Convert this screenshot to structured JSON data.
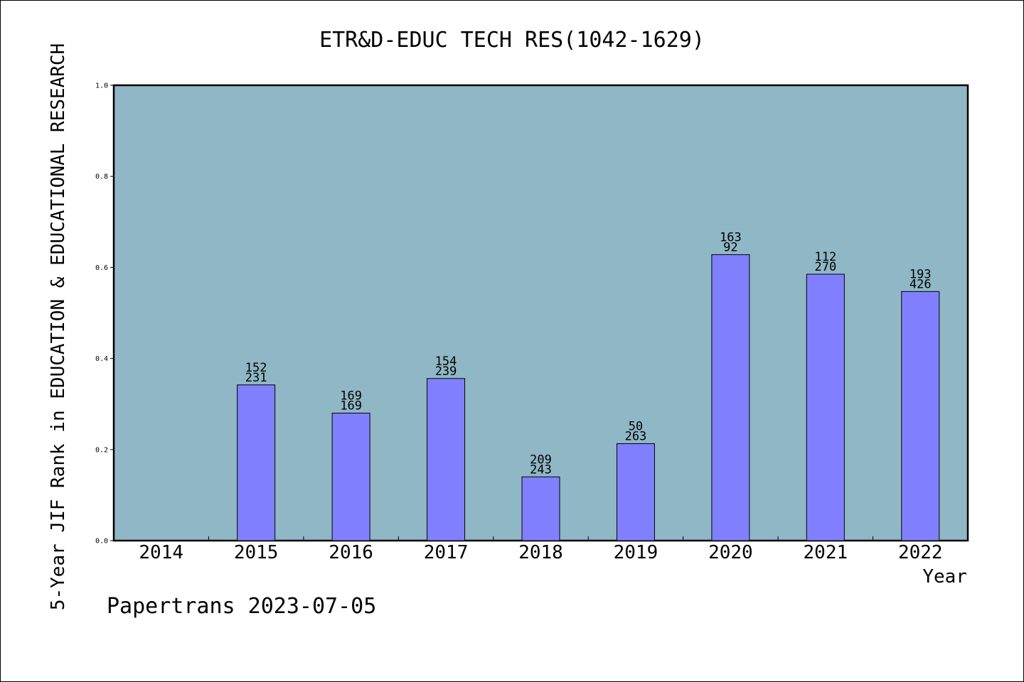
{
  "chart_data": {
    "type": "bar",
    "title": "ETR&D-EDUC TECH RES(1042-1629)",
    "xlabel": "Year",
    "ylabel": "5-Year JIF Rank in EDUCATION & EDUCATIONAL RESEARCH",
    "ylim": [
      0,
      1
    ],
    "yticks": [
      "0.0",
      "0.2",
      "0.4",
      "0.6",
      "0.8",
      "1.0"
    ],
    "ytick_values": [
      0,
      0.2,
      0.4,
      0.6,
      0.8,
      1.0
    ],
    "categories": [
      "2014",
      "2015",
      "2016",
      "2017",
      "2018",
      "2019",
      "2020",
      "2021",
      "2022"
    ],
    "values": [
      null,
      0.342,
      0.28,
      0.356,
      0.14,
      0.213,
      0.628,
      0.585,
      0.547
    ],
    "labels_top": [
      "",
      "152",
      "169",
      "154",
      "209",
      "50",
      "163",
      "112",
      "193"
    ],
    "labels_bottom": [
      "",
      "231",
      "169",
      "239",
      "243",
      "263",
      "92",
      "270",
      "426"
    ],
    "grid": false,
    "colors": {
      "plot_background": "#8fb7c5",
      "bar_fill": "#8080ff",
      "bar_stroke": "#000000",
      "axis": "#000000"
    }
  },
  "footer": {
    "text": "Papertrans 2023-07-05"
  }
}
